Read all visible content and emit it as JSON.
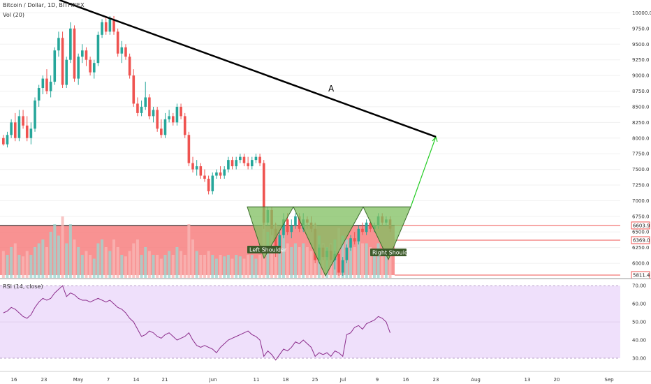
{
  "header": {
    "symbol": "Bitcoin / Dollar, 1D, BITFINEX",
    "volume": "Vol (20)",
    "rsi": "RSI (14, close)"
  },
  "colors": {
    "up": "#26a69a",
    "down": "#ef5350",
    "zone": "#f77f7f",
    "pattern": "#7fbf5f",
    "trendline": "#000000",
    "projection": "#22cc22",
    "rsi_line": "#8b2c8b",
    "rsi_bg": "#efe0fb"
  },
  "annotations": {
    "trend_label": "A",
    "left_shoulder": "Left Shoulder",
    "right_shoulder": "Right Shoulder"
  },
  "chart_data": {
    "type": "candlestick",
    "ylim": [
      5800,
      10150
    ],
    "y_ticks": [
      "10000.0",
      "9750.0",
      "9500.0",
      "9250.0",
      "9000.0",
      "8750.0",
      "8500.0",
      "8250.0",
      "8000.0",
      "7750.0",
      "7500.0",
      "7250.0",
      "7000.0",
      "6750.0",
      "6500.0",
      "6250.0",
      "6000.0",
      "5750.0"
    ],
    "price_levels": [
      {
        "label": "6603.9",
        "value": 6603.9
      },
      {
        "label": "6369.0",
        "value": 6369.0
      },
      {
        "label": "5811.4",
        "value": 5811.4
      }
    ],
    "x_ticks": [
      "16",
      "23",
      "May",
      "7",
      "14",
      "21",
      "Jun",
      "11",
      "18",
      "25",
      "Jul",
      "9",
      "16",
      "23",
      "Aug",
      "13",
      "20",
      "Sep"
    ],
    "candles": [
      [
        8000,
        8050,
        7880,
        7900
      ],
      [
        7900,
        8100,
        7850,
        8050
      ],
      [
        8050,
        8300,
        8000,
        8250
      ],
      [
        8250,
        8400,
        7950,
        8000
      ],
      [
        8000,
        8450,
        7950,
        8350
      ],
      [
        8350,
        8450,
        8150,
        8200
      ],
      [
        8200,
        8350,
        7950,
        8000
      ],
      [
        8000,
        8250,
        7900,
        8150
      ],
      [
        8150,
        8650,
        8100,
        8600
      ],
      [
        8600,
        8850,
        8500,
        8800
      ],
      [
        8800,
        9000,
        8700,
        8950
      ],
      [
        8950,
        9100,
        8700,
        8750
      ],
      [
        8750,
        9000,
        8650,
        8900
      ],
      [
        8900,
        9450,
        8850,
        9400
      ],
      [
        9400,
        9700,
        9300,
        9600
      ],
      [
        9600,
        9700,
        8800,
        8850
      ],
      [
        8850,
        9300,
        8800,
        9250
      ],
      [
        9250,
        9850,
        9200,
        9750
      ],
      [
        9750,
        9800,
        8900,
        8950
      ],
      [
        8950,
        9350,
        8850,
        9300
      ],
      [
        9300,
        9500,
        9200,
        9400
      ],
      [
        9400,
        9450,
        9150,
        9250
      ],
      [
        9250,
        9300,
        9000,
        9050
      ],
      [
        9050,
        9250,
        8950,
        9200
      ],
      [
        9200,
        9700,
        9150,
        9650
      ],
      [
        9650,
        9900,
        9600,
        9850
      ],
      [
        9850,
        9950,
        9650,
        9700
      ],
      [
        9700,
        9950,
        9650,
        9900
      ],
      [
        9900,
        9950,
        9650,
        9700
      ],
      [
        9700,
        9750,
        9300,
        9350
      ],
      [
        9350,
        9550,
        9200,
        9450
      ],
      [
        9450,
        9500,
        9250,
        9300
      ],
      [
        9300,
        9350,
        8950,
        9000
      ],
      [
        9000,
        9100,
        8500,
        8550
      ],
      [
        8550,
        8650,
        8350,
        8400
      ],
      [
        8400,
        8600,
        8350,
        8500
      ],
      [
        8500,
        8900,
        8450,
        8650
      ],
      [
        8650,
        8700,
        8300,
        8350
      ],
      [
        8350,
        8500,
        8250,
        8450
      ],
      [
        8450,
        8500,
        8100,
        8150
      ],
      [
        8150,
        8300,
        8000,
        8050
      ],
      [
        8050,
        8400,
        8000,
        8300
      ],
      [
        8300,
        8450,
        8250,
        8350
      ],
      [
        8350,
        8400,
        8200,
        8250
      ],
      [
        8250,
        8550,
        8200,
        8500
      ],
      [
        8500,
        8550,
        8300,
        8350
      ],
      [
        8350,
        8400,
        8000,
        8050
      ],
      [
        8050,
        8100,
        7550,
        7600
      ],
      [
        7600,
        7700,
        7450,
        7500
      ],
      [
        7500,
        7650,
        7400,
        7550
      ],
      [
        7550,
        7600,
        7350,
        7400
      ],
      [
        7400,
        7500,
        7300,
        7350
      ],
      [
        7350,
        7400,
        7100,
        7150
      ],
      [
        7150,
        7450,
        7100,
        7400
      ],
      [
        7400,
        7500,
        7350,
        7450
      ],
      [
        7450,
        7550,
        7350,
        7400
      ],
      [
        7400,
        7550,
        7350,
        7500
      ],
      [
        7500,
        7700,
        7450,
        7650
      ],
      [
        7650,
        7700,
        7500,
        7550
      ],
      [
        7550,
        7700,
        7500,
        7650
      ],
      [
        7650,
        7750,
        7600,
        7700
      ],
      [
        7700,
        7750,
        7550,
        7600
      ],
      [
        7600,
        7700,
        7500,
        7550
      ],
      [
        7550,
        7700,
        7500,
        7650
      ],
      [
        7650,
        7750,
        7600,
        7700
      ],
      [
        7700,
        7750,
        7550,
        7600
      ],
      [
        7600,
        7650,
        6550,
        6650
      ],
      [
        6650,
        6900,
        6600,
        6850
      ],
      [
        6850,
        6900,
        6450,
        6550
      ],
      [
        6550,
        6650,
        6100,
        6200
      ],
      [
        6200,
        6500,
        6150,
        6450
      ],
      [
        6450,
        6800,
        6400,
        6700
      ],
      [
        6700,
        6800,
        6450,
        6500
      ],
      [
        6500,
        6700,
        6400,
        6600
      ],
      [
        6600,
        6800,
        6550,
        6750
      ],
      [
        6750,
        6800,
        6500,
        6550
      ],
      [
        6550,
        6800,
        6500,
        6700
      ],
      [
        6700,
        6750,
        6550,
        6650
      ],
      [
        6650,
        6750,
        6500,
        6550
      ],
      [
        6550,
        6650,
        6000,
        6050
      ],
      [
        6050,
        6300,
        6000,
        6250
      ],
      [
        6250,
        6300,
        6050,
        6100
      ],
      [
        6100,
        6250,
        6050,
        6200
      ],
      [
        6200,
        6300,
        6000,
        6050
      ],
      [
        6050,
        6200,
        5900,
        6150
      ],
      [
        6150,
        6200,
        5800,
        5850
      ],
      [
        5850,
        6100,
        5800,
        6050
      ],
      [
        6050,
        6300,
        6000,
        6250
      ],
      [
        6250,
        6450,
        6200,
        6400
      ],
      [
        6400,
        6500,
        6300,
        6350
      ],
      [
        6350,
        6600,
        6300,
        6550
      ],
      [
        6550,
        6650,
        6450,
        6500
      ],
      [
        6500,
        6700,
        6450,
        6650
      ],
      [
        6650,
        6700,
        6500,
        6550
      ],
      [
        6550,
        6650,
        6500,
        6600
      ],
      [
        6600,
        6800,
        6550,
        6750
      ],
      [
        6750,
        6800,
        6600,
        6650
      ],
      [
        6650,
        6750,
        6600,
        6700
      ],
      [
        6700,
        6750,
        6500,
        6550
      ]
    ],
    "volumes": [
      0.35,
      0.3,
      0.4,
      0.45,
      0.3,
      0.28,
      0.35,
      0.3,
      0.4,
      0.45,
      0.5,
      0.4,
      0.6,
      0.7,
      0.55,
      0.8,
      0.45,
      0.7,
      0.5,
      0.4,
      0.3,
      0.35,
      0.3,
      0.25,
      0.45,
      0.5,
      0.4,
      0.35,
      0.5,
      0.4,
      0.3,
      0.28,
      0.35,
      0.45,
      0.5,
      0.3,
      0.4,
      0.35,
      0.3,
      0.3,
      0.25,
      0.3,
      0.35,
      0.3,
      0.4,
      0.35,
      0.3,
      0.7,
      0.5,
      0.35,
      0.3,
      0.3,
      0.35,
      0.3,
      0.25,
      0.3,
      0.28,
      0.3,
      0.25,
      0.3,
      0.28,
      0.25,
      0.3,
      0.3,
      0.25,
      0.3,
      0.85,
      0.6,
      0.65,
      0.7,
      0.5,
      0.6,
      0.45,
      0.4,
      0.45,
      0.4,
      0.45,
      0.4,
      0.35,
      0.7,
      0.55,
      0.45,
      0.4,
      0.45,
      0.5,
      0.65,
      0.55,
      0.5,
      0.45,
      0.4,
      0.5,
      0.45,
      0.45,
      0.4,
      0.35,
      0.45,
      0.35,
      0.3,
      0.35
    ],
    "rsi_ylim": [
      25,
      72
    ],
    "rsi_ticks": [
      "70.00",
      "60.00",
      "50.00",
      "40.00",
      "30.00"
    ],
    "rsi": [
      55,
      56,
      58,
      57,
      55,
      53,
      52,
      54,
      58,
      61,
      63,
      62,
      63,
      66,
      68,
      70,
      64,
      66,
      65,
      63,
      62,
      62,
      61,
      62,
      63,
      62,
      61,
      62,
      60,
      58,
      57,
      55,
      52,
      50,
      46,
      42,
      43,
      45,
      44,
      42,
      41,
      43,
      44,
      42,
      40,
      41,
      42,
      44,
      40,
      37,
      36,
      37,
      36,
      35,
      33,
      36,
      38,
      40,
      41,
      42,
      43,
      44,
      45,
      43,
      42,
      40,
      31,
      34,
      32,
      29,
      32,
      35,
      34,
      36,
      39,
      38,
      40,
      38,
      36,
      31,
      33,
      32,
      33,
      31,
      34,
      33,
      31,
      43,
      44,
      47,
      48,
      46,
      49,
      50,
      51,
      53,
      52,
      50,
      44
    ]
  }
}
